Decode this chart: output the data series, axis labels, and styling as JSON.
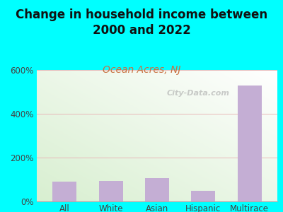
{
  "title": "Change in household income between\n2000 and 2022",
  "subtitle": "Ocean Acres, NJ",
  "categories": [
    "All",
    "White",
    "Asian",
    "Hispanic",
    "Multirace"
  ],
  "values": [
    90,
    92,
    105,
    50,
    530
  ],
  "bar_color": "#c4aed4",
  "title_fontsize": 12,
  "subtitle_fontsize": 10,
  "subtitle_color": "#c87040",
  "background_color": "#00ffff",
  "plot_bg_topleft": "#d8efd0",
  "plot_bg_bottomright": "#f8fff0",
  "ylim": [
    0,
    600
  ],
  "yticks": [
    0,
    200,
    400,
    600
  ],
  "ytick_labels": [
    "0%",
    "200%",
    "400%",
    "600%"
  ],
  "grid_color": "#e8b8b8",
  "watermark": "City-Data.com"
}
